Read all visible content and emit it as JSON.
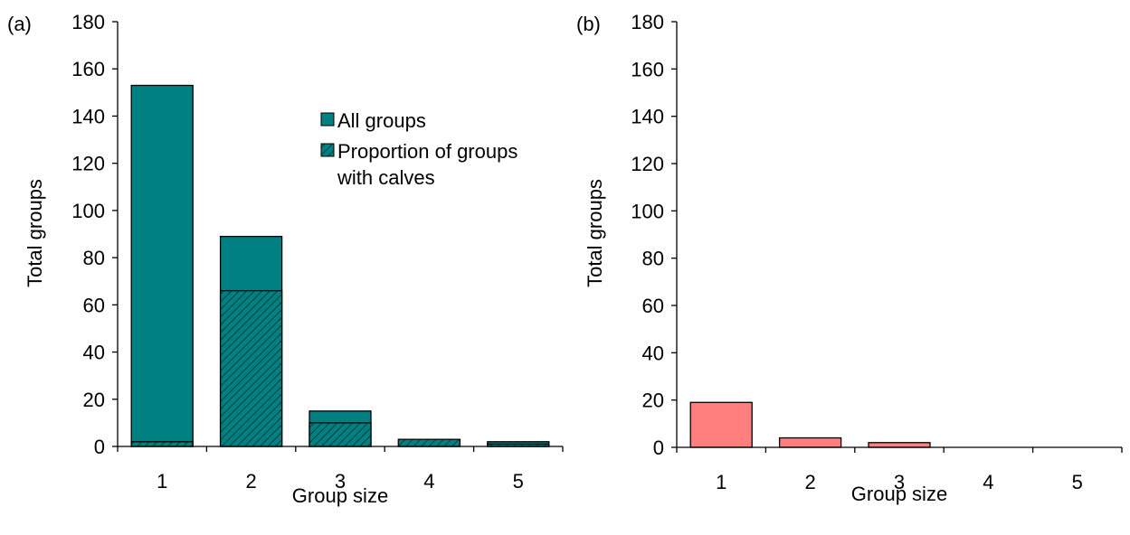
{
  "chart_data": [
    {
      "type": "bar",
      "panel_label": "(a)",
      "xlabel": "Group size",
      "ylabel": "Total groups",
      "categories": [
        "1",
        "2",
        "3",
        "4",
        "5"
      ],
      "ylim": [
        0,
        180
      ],
      "yticks": [
        0,
        20,
        40,
        60,
        80,
        100,
        120,
        140,
        160,
        180
      ],
      "grid": false,
      "legend_position": "top-right",
      "series": [
        {
          "name": "All groups",
          "values": [
            153,
            89,
            15,
            3,
            2
          ],
          "color": "#008080",
          "pattern": "solid"
        },
        {
          "name": "Proportion of groups with calves",
          "values": [
            2,
            66,
            10,
            3,
            1
          ],
          "color": "#008080",
          "pattern": "hatched"
        }
      ],
      "legend": {
        "items": [
          {
            "key": "solid",
            "lines": [
              "All groups"
            ]
          },
          {
            "key": "hatched",
            "lines": [
              "Proportion of groups",
              "with calves"
            ]
          }
        ]
      }
    },
    {
      "type": "bar",
      "panel_label": "(b)",
      "xlabel": "Group size",
      "ylabel": "Total groups",
      "categories": [
        "1",
        "2",
        "3",
        "4",
        "5"
      ],
      "ylim": [
        0,
        180
      ],
      "yticks": [
        0,
        20,
        40,
        60,
        80,
        100,
        120,
        140,
        160,
        180
      ],
      "grid": false,
      "series": [
        {
          "values": [
            19,
            4,
            2,
            0,
            0
          ],
          "color": "#ff7f7f",
          "pattern": "solid"
        }
      ]
    }
  ]
}
